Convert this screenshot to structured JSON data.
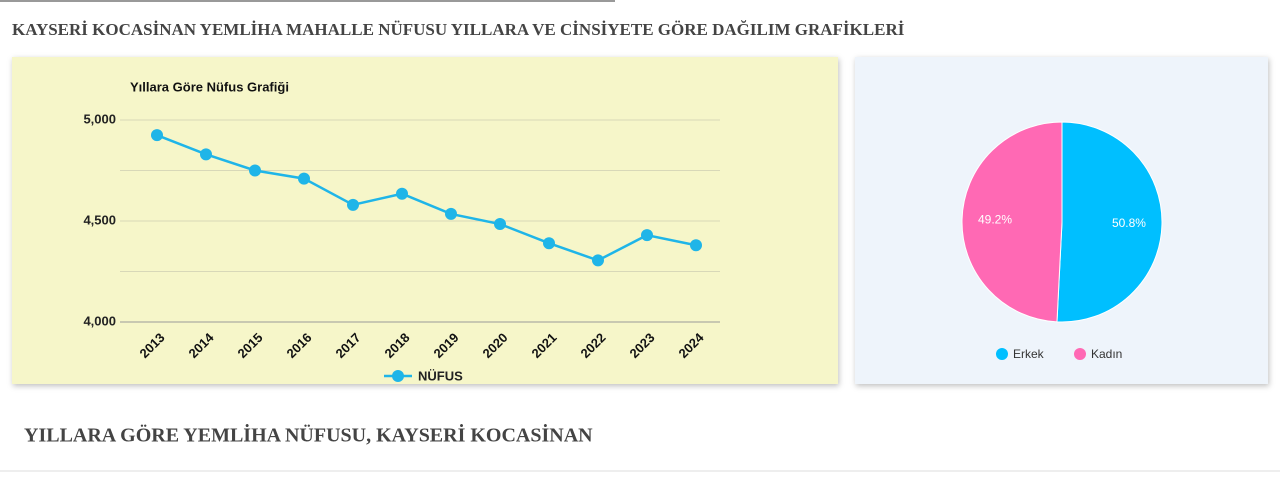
{
  "header": {
    "title": "KAYSERİ KOCASİNAN YEMLİHA MAHALLE NÜFUSU YILLARA VE CİNSİYETE GÖRE DAĞILIM GRAFİKLERİ"
  },
  "section": {
    "title": "YILLARA GÖRE YEMLİHA NÜFUSU, KAYSERİ KOCASİNAN"
  },
  "chart_data": [
    {
      "type": "line",
      "title": "Yıllara Göre Nüfus Grafiği",
      "categories": [
        "2013",
        "2014",
        "2015",
        "2016",
        "2017",
        "2018",
        "2019",
        "2020",
        "2021",
        "2022",
        "2023",
        "2024"
      ],
      "series": [
        {
          "name": "NÜFUS",
          "color": "#1fb5e8",
          "values": [
            4925,
            4830,
            4750,
            4710,
            4580,
            4635,
            4535,
            4485,
            4390,
            4305,
            4430,
            4380
          ]
        }
      ],
      "ylim": [
        4000,
        5000
      ],
      "yticks": [
        {
          "value": 4000,
          "label": "4,000"
        },
        {
          "value": 4500,
          "label": "4,500"
        },
        {
          "value": 5000,
          "label": "5,000"
        }
      ],
      "y_minor_ticks": [
        4250,
        4750
      ],
      "grid": true,
      "legend": "bottom"
    },
    {
      "type": "pie",
      "categories": [
        "Erkek",
        "Kadın"
      ],
      "values": [
        50.8,
        49.2
      ],
      "value_labels": [
        "50.8%",
        "49.2%"
      ],
      "colors": [
        "#00bfff",
        "#ff69b4"
      ],
      "legend": "bottom"
    }
  ]
}
